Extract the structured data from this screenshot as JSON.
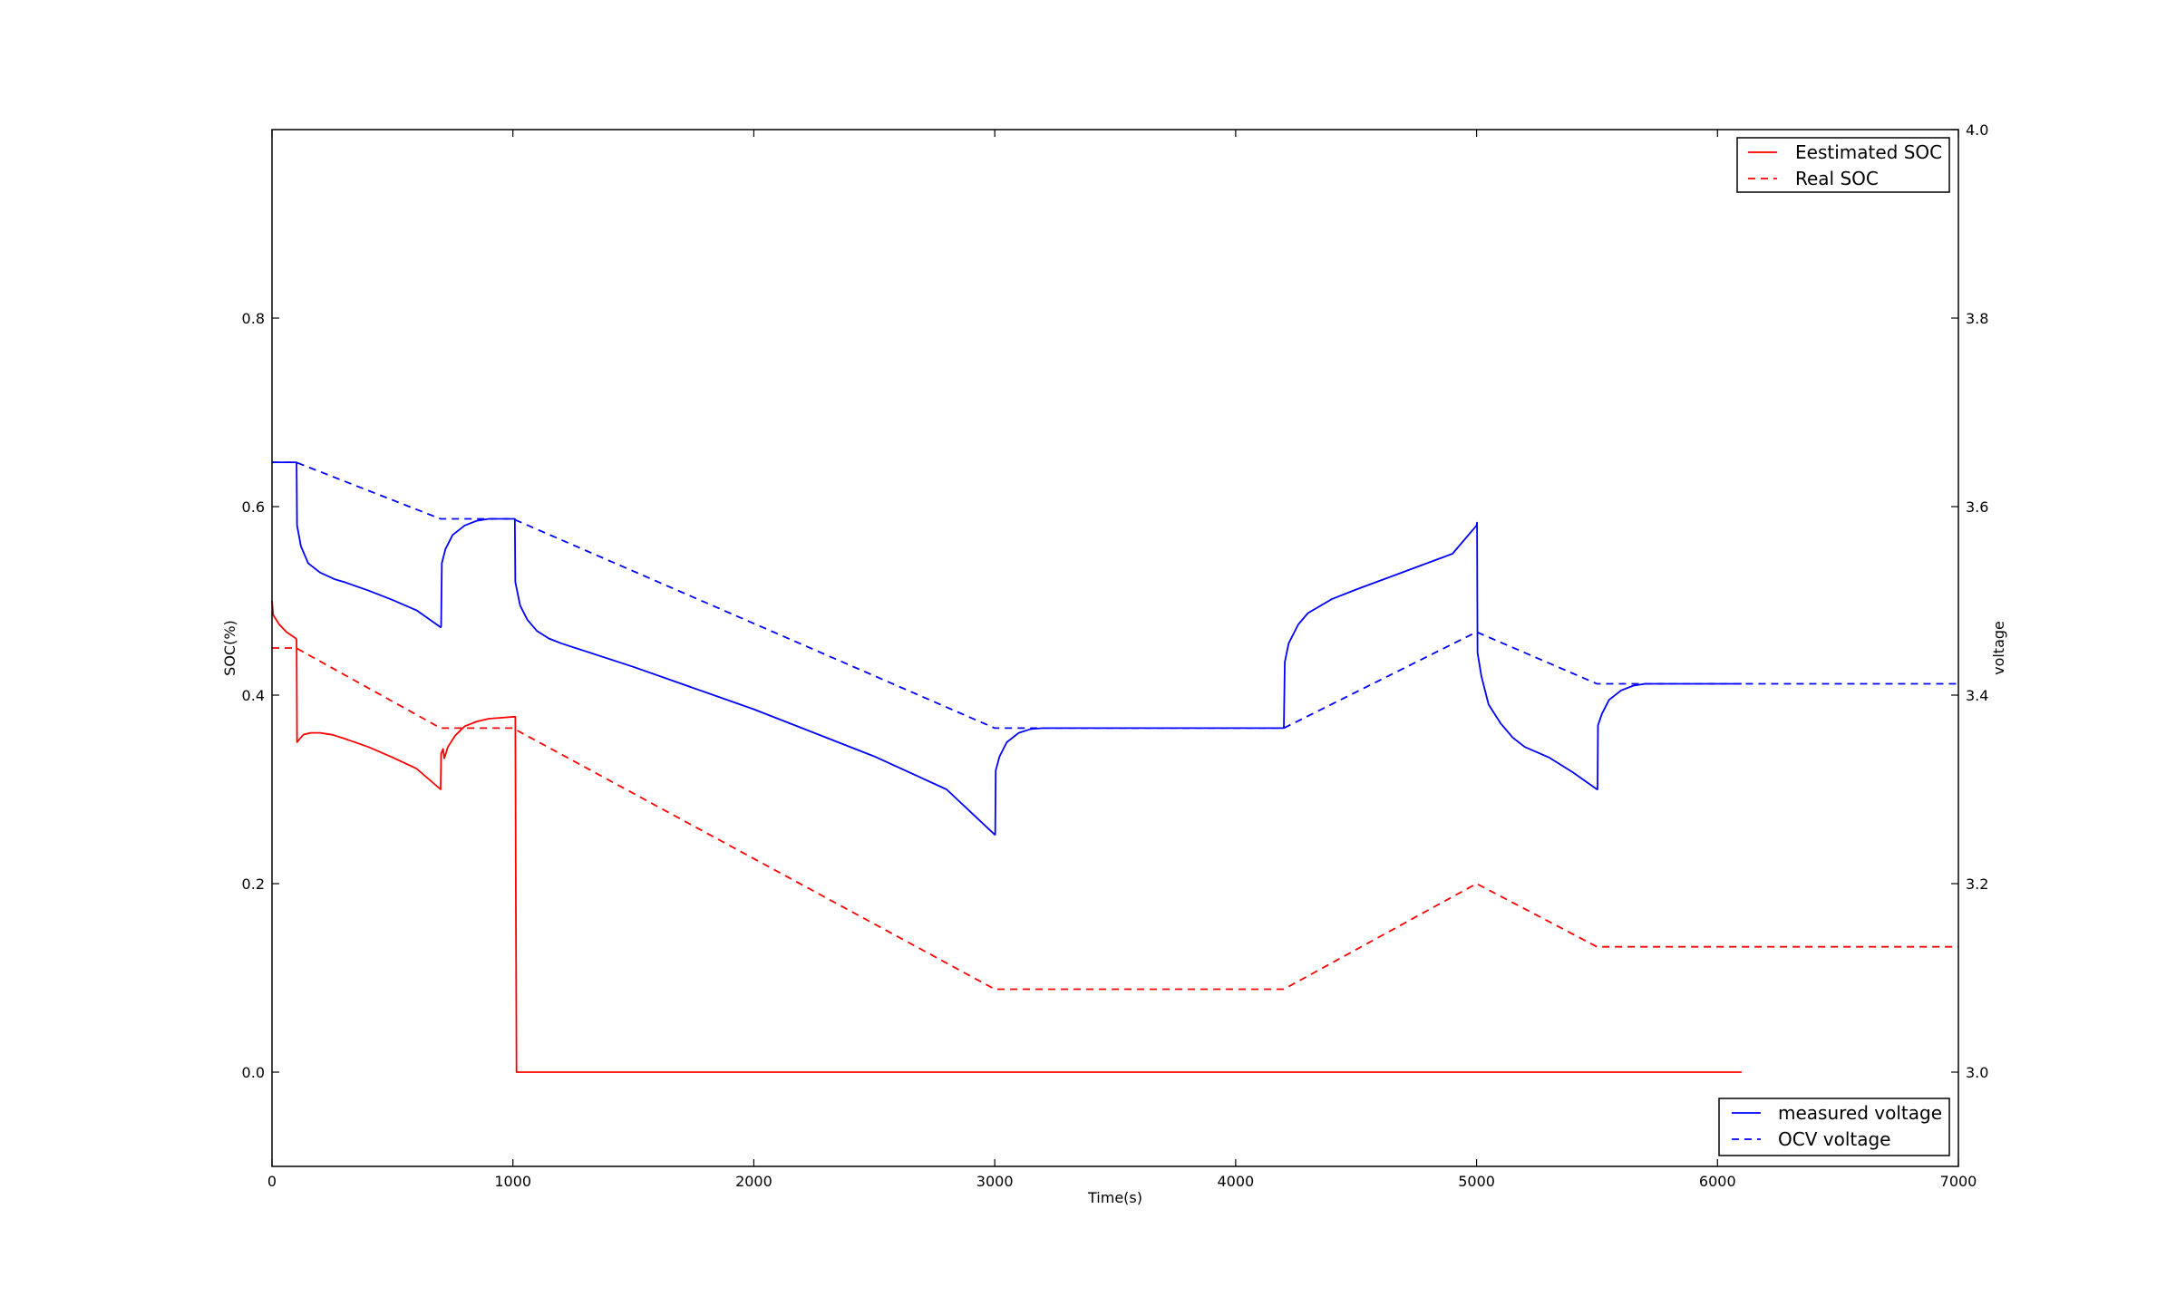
{
  "chart_data": {
    "type": "line",
    "xlabel": "Time(s)",
    "ylabel_left": "SOC(%)",
    "ylabel_right": "voltage",
    "xlim": [
      0,
      7000
    ],
    "ylim_left": [
      -0.1,
      1.0
    ],
    "ylim_right": [
      2.9,
      4.0
    ],
    "x_ticks": [
      0,
      1000,
      2000,
      3000,
      4000,
      5000,
      6000,
      7000
    ],
    "left_ticks": [
      0.0,
      0.2,
      0.4,
      0.6,
      0.8
    ],
    "left_tick_labels": [
      "0.0",
      "0.2",
      "0.4",
      "0.6",
      "0.8"
    ],
    "right_ticks": [
      3.0,
      3.2,
      3.4,
      3.6,
      3.8,
      4.0
    ],
    "right_tick_labels": [
      "3.0",
      "3.2",
      "3.4",
      "3.6",
      "3.8",
      "4.0"
    ],
    "grid": false,
    "legend_left_axis": {
      "placement": "top-right",
      "entries": [
        "Eestimated SOC",
        "Real SOC"
      ]
    },
    "legend_right_axis": {
      "placement": "bottom-right",
      "entries": [
        "measured voltage",
        "OCV voltage"
      ]
    },
    "series": [
      {
        "name": "Eestimated SOC",
        "axis": "left",
        "color": "#ff0000",
        "style": "solid",
        "points": [
          [
            0,
            0.5
          ],
          [
            5,
            0.485
          ],
          [
            30,
            0.475
          ],
          [
            60,
            0.467
          ],
          [
            100,
            0.46
          ],
          [
            102,
            0.458
          ],
          [
            104,
            0.35
          ],
          [
            110,
            0.352
          ],
          [
            130,
            0.358
          ],
          [
            160,
            0.36
          ],
          [
            200,
            0.36
          ],
          [
            250,
            0.358
          ],
          [
            300,
            0.354
          ],
          [
            400,
            0.345
          ],
          [
            500,
            0.334
          ],
          [
            600,
            0.322
          ],
          [
            700,
            0.3
          ],
          [
            702,
            0.338
          ],
          [
            710,
            0.343
          ],
          [
            715,
            0.333
          ],
          [
            730,
            0.345
          ],
          [
            760,
            0.357
          ],
          [
            800,
            0.367
          ],
          [
            850,
            0.372
          ],
          [
            900,
            0.375
          ],
          [
            950,
            0.376
          ],
          [
            1000,
            0.377
          ],
          [
            1010,
            0.377
          ],
          [
            1012,
            0.2
          ],
          [
            1015,
            0.0
          ],
          [
            2000,
            0.0
          ],
          [
            4000,
            0.0
          ],
          [
            6100,
            0.0
          ]
        ]
      },
      {
        "name": "Real SOC",
        "axis": "left",
        "color": "#ff0000",
        "style": "dashed",
        "points": [
          [
            0,
            0.45
          ],
          [
            100,
            0.45
          ],
          [
            700,
            0.365
          ],
          [
            1000,
            0.365
          ],
          [
            3000,
            0.088
          ],
          [
            4200,
            0.088
          ],
          [
            5000,
            0.2
          ],
          [
            5500,
            0.133
          ],
          [
            7000,
            0.133
          ]
        ]
      },
      {
        "name": "measured voltage",
        "axis": "right",
        "color": "#0000ff",
        "style": "solid",
        "points": [
          [
            0,
            3.647
          ],
          [
            100,
            3.647
          ],
          [
            102,
            3.647
          ],
          [
            104,
            3.58
          ],
          [
            120,
            3.558
          ],
          [
            150,
            3.54
          ],
          [
            200,
            3.53
          ],
          [
            260,
            3.523
          ],
          [
            300,
            3.52
          ],
          [
            400,
            3.511
          ],
          [
            500,
            3.501
          ],
          [
            600,
            3.49
          ],
          [
            700,
            3.472
          ],
          [
            702,
            3.473
          ],
          [
            705,
            3.54
          ],
          [
            720,
            3.555
          ],
          [
            750,
            3.57
          ],
          [
            800,
            3.58
          ],
          [
            850,
            3.585
          ],
          [
            900,
            3.587
          ],
          [
            1000,
            3.587
          ],
          [
            1008,
            3.587
          ],
          [
            1010,
            3.52
          ],
          [
            1030,
            3.495
          ],
          [
            1060,
            3.48
          ],
          [
            1100,
            3.468
          ],
          [
            1150,
            3.46
          ],
          [
            1200,
            3.455
          ],
          [
            1500,
            3.43
          ],
          [
            2000,
            3.385
          ],
          [
            2500,
            3.335
          ],
          [
            2800,
            3.3
          ],
          [
            3000,
            3.252
          ],
          [
            3002,
            3.252
          ],
          [
            3004,
            3.32
          ],
          [
            3020,
            3.335
          ],
          [
            3050,
            3.35
          ],
          [
            3100,
            3.36
          ],
          [
            3150,
            3.364
          ],
          [
            3200,
            3.365
          ],
          [
            4200,
            3.365
          ],
          [
            4204,
            3.435
          ],
          [
            4220,
            3.455
          ],
          [
            4260,
            3.475
          ],
          [
            4300,
            3.487
          ],
          [
            4400,
            3.502
          ],
          [
            4500,
            3.512
          ],
          [
            4700,
            3.531
          ],
          [
            4900,
            3.55
          ],
          [
            5000,
            3.58
          ],
          [
            5002,
            3.583
          ],
          [
            5004,
            3.445
          ],
          [
            5020,
            3.42
          ],
          [
            5050,
            3.39
          ],
          [
            5100,
            3.37
          ],
          [
            5150,
            3.355
          ],
          [
            5200,
            3.345
          ],
          [
            5300,
            3.334
          ],
          [
            5400,
            3.318
          ],
          [
            5500,
            3.3
          ],
          [
            5502,
            3.3
          ],
          [
            5504,
            3.368
          ],
          [
            5520,
            3.38
          ],
          [
            5550,
            3.395
          ],
          [
            5600,
            3.405
          ],
          [
            5650,
            3.41
          ],
          [
            5700,
            3.412
          ],
          [
            6100,
            3.412
          ]
        ]
      },
      {
        "name": "OCV voltage",
        "axis": "right",
        "color": "#0000ff",
        "style": "dashed",
        "points": [
          [
            0,
            3.647
          ],
          [
            100,
            3.647
          ],
          [
            700,
            3.587
          ],
          [
            1000,
            3.587
          ],
          [
            3000,
            3.365
          ],
          [
            4200,
            3.365
          ],
          [
            5000,
            3.467
          ],
          [
            5500,
            3.412
          ],
          [
            7000,
            3.412
          ]
        ]
      }
    ]
  }
}
